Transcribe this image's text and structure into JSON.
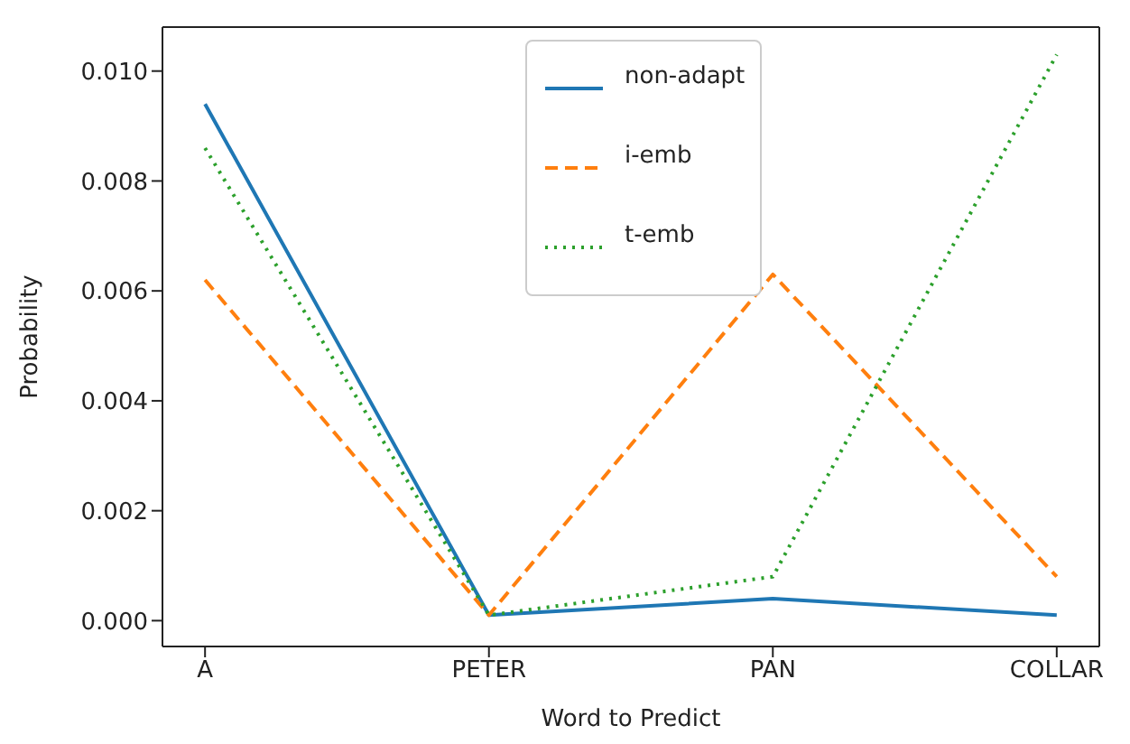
{
  "chart_data": {
    "type": "line",
    "xlabel": "Word to Predict",
    "ylabel": "Probability",
    "categories": [
      "A",
      "PETER",
      "PAN",
      "COLLAR"
    ],
    "series": [
      {
        "name": "non-adapt",
        "color": "#1f77b4",
        "line_style": "solid",
        "values": [
          0.0094,
          0.0001,
          0.0004,
          0.0001
        ]
      },
      {
        "name": "i-emb",
        "color": "#ff7f0e",
        "line_style": "dashed",
        "values": [
          0.0062,
          0.0001,
          0.0063,
          0.0008
        ]
      },
      {
        "name": "t-emb",
        "color": "#2ca02c",
        "line_style": "dotted",
        "values": [
          0.0086,
          0.0001,
          0.0008,
          0.0103
        ]
      }
    ],
    "ylim": [
      -0.00047,
      0.0108
    ],
    "yticks": [
      {
        "value": 0,
        "label": "0.000"
      },
      {
        "value": 0.002,
        "label": "0.002"
      },
      {
        "value": 0.004,
        "label": "0.004"
      },
      {
        "value": 0.006,
        "label": "0.006"
      },
      {
        "value": 0.008,
        "label": "0.008"
      },
      {
        "value": 0.01,
        "label": "0.010"
      }
    ],
    "grid": false,
    "legend": "top",
    "marker": "none"
  }
}
